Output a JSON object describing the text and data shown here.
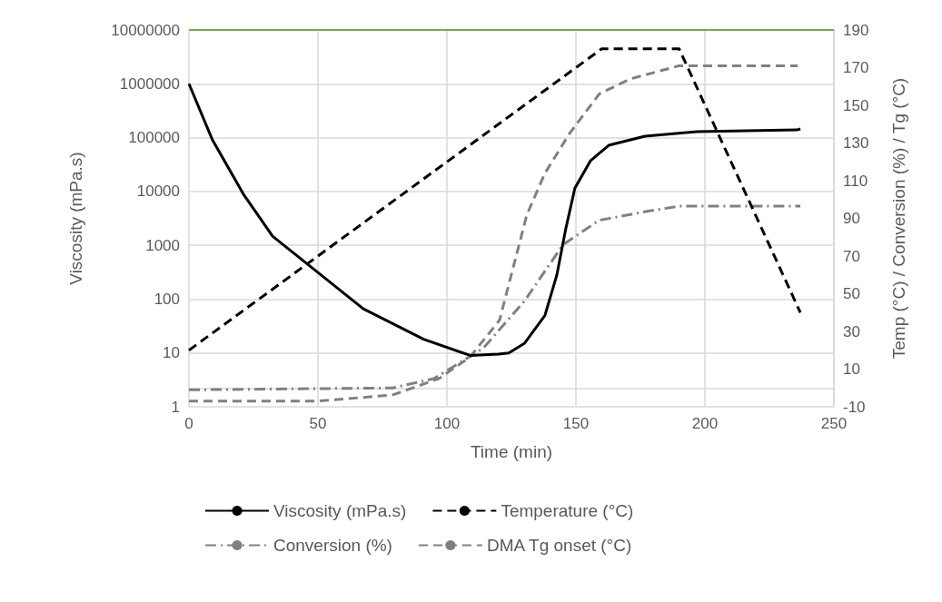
{
  "chart_data": {
    "type": "line",
    "xlabel": "Time (min)",
    "ylabel": "Viscosity (mPa.s)",
    "y2label": "Temp (°C) / Conversion (%) / Tg (°C)",
    "xlim": [
      0,
      250
    ],
    "xticks": [
      0,
      50,
      100,
      150,
      200,
      250
    ],
    "ylim": [
      1,
      10000000
    ],
    "yticks": [
      1,
      10,
      100,
      1000,
      10000,
      100000,
      1000000,
      10000000
    ],
    "y2lim": [
      -10,
      190
    ],
    "y2ticks": [
      -10,
      10,
      30,
      50,
      70,
      90,
      110,
      130,
      150,
      170,
      190
    ],
    "log": "y",
    "grid": true,
    "legend": "bottom",
    "marker": "none",
    "ref_lines": [
      {
        "axis": "y",
        "value": 10000000,
        "color": "#70ad47"
      }
    ],
    "series": [
      {
        "name": "Viscosity (mPa.s)",
        "color": "#000000",
        "line_style": "solid",
        "x": [
          0,
          9,
          21,
          32.4,
          46.5,
          67.6,
          91,
          109,
          120,
          124,
          130,
          138,
          142.6,
          146,
          149.6,
          155.6,
          162.7,
          176.8,
          196.8,
          235.6,
          237
        ],
        "values": [
          1000000,
          93000,
          9100,
          1480,
          427,
          66,
          18,
          9,
          9.5,
          10,
          15,
          50,
          280,
          1950,
          11500,
          37000,
          72000,
          106000,
          129000,
          139000,
          145000
        ]
      },
      {
        "name": "Temperature (°C)",
        "color": "#000000",
        "line_style": "dashed",
        "axis": "y2",
        "x": [
          0,
          160,
          190,
          237
        ],
        "values": [
          20,
          180,
          180,
          40
        ]
      },
      {
        "name": "Conversion (%)",
        "color": "#808080",
        "line_style": "dashdot",
        "axis": "y2",
        "x": [
          0,
          79,
          95,
          114,
          130,
          145,
          159,
          177,
          190,
          237
        ],
        "values": [
          -1,
          0,
          5,
          21,
          46,
          76,
          89,
          93.6,
          96.5,
          96.5
        ]
      },
      {
        "name": "DMA Tg onset (°C)",
        "color": "#808080",
        "line_style": "dashed",
        "axis": "y2",
        "x": [
          0,
          50,
          79,
          97,
          109,
          120.4,
          131,
          138,
          147.5,
          159,
          171,
          190,
          236
        ],
        "values": [
          -7,
          -7,
          -3.7,
          5,
          16.5,
          36,
          92,
          114,
          135,
          156,
          164,
          171,
          171
        ]
      }
    ]
  }
}
